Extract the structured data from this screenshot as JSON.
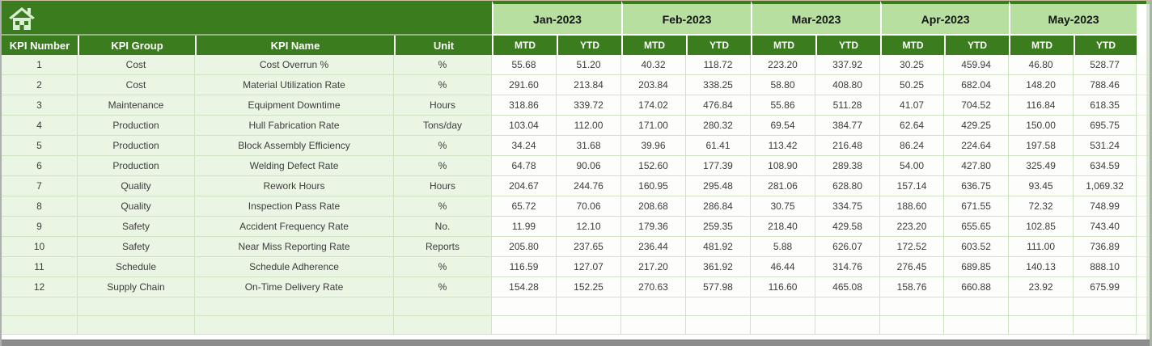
{
  "header": {
    "left_columns": [
      "KPI Number",
      "KPI Group",
      "KPI Name",
      "Unit"
    ],
    "months": [
      "Jan-2023",
      "Feb-2023",
      "Mar-2023",
      "Apr-2023",
      "May-2023"
    ],
    "sub_columns": [
      "MTD",
      "YTD"
    ],
    "home_icon": "home-icon"
  },
  "colors": {
    "dark_green": "#3a7c1e",
    "month_band_green": "#b7e0a0",
    "pale_row_green": "#eaf5e4",
    "grid_line": "#cfe4c2",
    "header_text": "#ffffff",
    "bottom_bar_gray": "#8c8c8c"
  },
  "rows": [
    {
      "number": "1",
      "group": "Cost",
      "name": "Cost Overrun %",
      "unit": "%",
      "values": [
        "55.68",
        "51.20",
        "40.32",
        "118.72",
        "223.20",
        "337.92",
        "30.25",
        "459.94",
        "46.80",
        "528.77"
      ]
    },
    {
      "number": "2",
      "group": "Cost",
      "name": "Material Utilization Rate",
      "unit": "%",
      "values": [
        "291.60",
        "213.84",
        "203.84",
        "338.25",
        "58.80",
        "408.80",
        "50.25",
        "682.04",
        "148.20",
        "788.46"
      ]
    },
    {
      "number": "3",
      "group": "Maintenance",
      "name": "Equipment Downtime",
      "unit": "Hours",
      "values": [
        "318.86",
        "339.72",
        "174.02",
        "476.84",
        "55.86",
        "511.28",
        "41.07",
        "704.52",
        "116.84",
        "618.35"
      ]
    },
    {
      "number": "4",
      "group": "Production",
      "name": "Hull Fabrication Rate",
      "unit": "Tons/day",
      "values": [
        "103.04",
        "112.00",
        "171.00",
        "280.32",
        "69.54",
        "384.77",
        "62.64",
        "429.25",
        "150.00",
        "695.75"
      ]
    },
    {
      "number": "5",
      "group": "Production",
      "name": "Block Assembly Efficiency",
      "unit": "%",
      "values": [
        "34.24",
        "31.68",
        "39.96",
        "61.41",
        "113.42",
        "216.48",
        "86.24",
        "224.64",
        "197.58",
        "531.24"
      ]
    },
    {
      "number": "6",
      "group": "Production",
      "name": "Welding Defect Rate",
      "unit": "%",
      "values": [
        "64.78",
        "90.06",
        "152.60",
        "177.39",
        "108.90",
        "289.38",
        "54.00",
        "427.80",
        "325.49",
        "634.59"
      ]
    },
    {
      "number": "7",
      "group": "Quality",
      "name": "Rework Hours",
      "unit": "Hours",
      "values": [
        "204.67",
        "244.76",
        "160.95",
        "295.48",
        "281.06",
        "628.80",
        "157.14",
        "636.75",
        "93.45",
        "1,069.32"
      ]
    },
    {
      "number": "8",
      "group": "Quality",
      "name": "Inspection Pass Rate",
      "unit": "%",
      "values": [
        "65.72",
        "70.06",
        "208.68",
        "286.84",
        "30.75",
        "334.75",
        "188.60",
        "671.55",
        "72.32",
        "748.99"
      ]
    },
    {
      "number": "9",
      "group": "Safety",
      "name": "Accident Frequency Rate",
      "unit": "No.",
      "values": [
        "11.99",
        "12.10",
        "179.36",
        "259.35",
        "218.40",
        "429.58",
        "223.20",
        "655.65",
        "102.85",
        "743.40"
      ]
    },
    {
      "number": "10",
      "group": "Safety",
      "name": "Near Miss Reporting Rate",
      "unit": "Reports",
      "values": [
        "205.80",
        "237.65",
        "236.44",
        "481.92",
        "5.88",
        "626.07",
        "172.52",
        "603.52",
        "111.00",
        "736.89"
      ]
    },
    {
      "number": "11",
      "group": "Schedule",
      "name": "Schedule Adherence",
      "unit": "%",
      "values": [
        "116.59",
        "127.07",
        "217.20",
        "361.92",
        "46.44",
        "314.76",
        "276.45",
        "689.85",
        "140.13",
        "888.10"
      ]
    },
    {
      "number": "12",
      "group": "Supply Chain",
      "name": "On-Time Delivery Rate",
      "unit": "%",
      "values": [
        "154.28",
        "152.25",
        "270.63",
        "577.98",
        "116.60",
        "465.08",
        "158.76",
        "660.88",
        "23.92",
        "675.99"
      ]
    }
  ],
  "empty_row_count": 2
}
